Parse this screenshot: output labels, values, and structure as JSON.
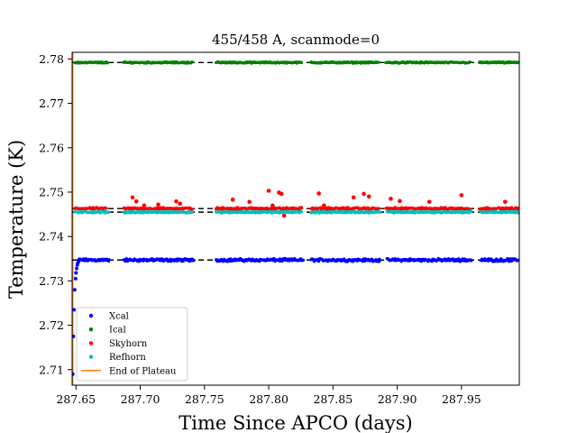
{
  "chart_data": {
    "type": "scatter",
    "title": "455/458 A, scanmode=0",
    "xlabel": "Time Since APCO (days)",
    "ylabel": "Temperature (K)",
    "xlim": [
      287.647,
      287.995
    ],
    "ylim": [
      2.7065,
      2.7815
    ],
    "xticks": [
      287.65,
      287.7,
      287.75,
      287.8,
      287.85,
      287.9,
      287.95
    ],
    "xtick_labels": [
      "287.65",
      "287.70",
      "287.75",
      "287.80",
      "287.85",
      "287.90",
      "287.95"
    ],
    "yticks": [
      2.71,
      2.72,
      2.73,
      2.74,
      2.75,
      2.76,
      2.77,
      2.78
    ],
    "ytick_labels": [
      "2.71",
      "2.72",
      "2.73",
      "2.74",
      "2.75",
      "2.76",
      "2.77",
      "2.78"
    ],
    "grid": false,
    "legend_position": "lower-left",
    "series": [
      {
        "name": "Xcal",
        "color": "#0000ff",
        "level": 2.7347,
        "noise": 0.0004,
        "segments": [
          [
            287.652,
            287.676
          ],
          [
            287.687,
            287.742
          ],
          [
            287.759,
            287.827
          ],
          [
            287.833,
            287.887
          ],
          [
            287.892,
            287.958
          ],
          [
            287.965,
            287.995
          ]
        ],
        "startup": [
          [
            287.6475,
            2.709
          ],
          [
            287.648,
            2.7175
          ],
          [
            287.6485,
            2.7235
          ],
          [
            287.649,
            2.728
          ],
          [
            287.6497,
            2.7305
          ],
          [
            287.65,
            2.7318
          ],
          [
            287.6505,
            2.7328
          ],
          [
            287.651,
            2.7336
          ],
          [
            287.6515,
            2.7341
          ],
          [
            287.652,
            2.7344
          ]
        ]
      },
      {
        "name": "Ical",
        "color": "#008000",
        "level": 2.7792,
        "noise": 0.0002,
        "segments": [
          [
            287.649,
            287.675
          ],
          [
            287.687,
            287.741
          ],
          [
            287.759,
            287.826
          ],
          [
            287.833,
            287.886
          ],
          [
            287.891,
            287.957
          ],
          [
            287.964,
            287.995
          ]
        ]
      },
      {
        "name": "Skyhorn",
        "color": "#ff0000",
        "level": 2.7463,
        "noise": 0.0003,
        "segments": [
          [
            287.649,
            287.674
          ],
          [
            287.687,
            287.741
          ],
          [
            287.759,
            287.826
          ],
          [
            287.833,
            287.886
          ],
          [
            287.891,
            287.957
          ],
          [
            287.964,
            287.995
          ]
        ],
        "outliers": [
          [
            287.694,
            2.7488
          ],
          [
            287.697,
            2.7479
          ],
          [
            287.703,
            2.747
          ],
          [
            287.714,
            2.7472
          ],
          [
            287.728,
            2.7479
          ],
          [
            287.731,
            2.7474
          ],
          [
            287.772,
            2.7483
          ],
          [
            287.785,
            2.7478
          ],
          [
            287.8,
            2.7503
          ],
          [
            287.803,
            2.747
          ],
          [
            287.808,
            2.7499
          ],
          [
            287.81,
            2.7496
          ],
          [
            287.812,
            2.7447
          ],
          [
            287.839,
            2.7497
          ],
          [
            287.843,
            2.747
          ],
          [
            287.866,
            2.7488
          ],
          [
            287.874,
            2.7496
          ],
          [
            287.878,
            2.749
          ],
          [
            287.895,
            2.7485
          ],
          [
            287.902,
            2.748
          ],
          [
            287.925,
            2.7478
          ],
          [
            287.95,
            2.7493
          ],
          [
            287.984,
            2.7478
          ]
        ]
      },
      {
        "name": "Refhorn",
        "color": "#00bfbf",
        "level": 2.7455,
        "noise": 0.00025,
        "segments": [
          [
            287.649,
            287.676
          ],
          [
            287.687,
            287.741
          ],
          [
            287.759,
            287.826
          ],
          [
            287.833,
            287.887
          ],
          [
            287.892,
            287.958
          ],
          [
            287.965,
            287.995
          ]
        ]
      }
    ],
    "reference_lines": [
      {
        "y": 2.7792,
        "color": "#000000",
        "style": "dashed"
      },
      {
        "y": 2.7463,
        "color": "#000000",
        "style": "dashed"
      },
      {
        "y": 2.7455,
        "color": "#000000",
        "style": "dashed"
      },
      {
        "y": 2.7347,
        "color": "#000000",
        "style": "dashed"
      }
    ],
    "vertical_line": {
      "name": "End of Plateau",
      "x": 287.6475,
      "color": "#ff7f0e"
    }
  }
}
